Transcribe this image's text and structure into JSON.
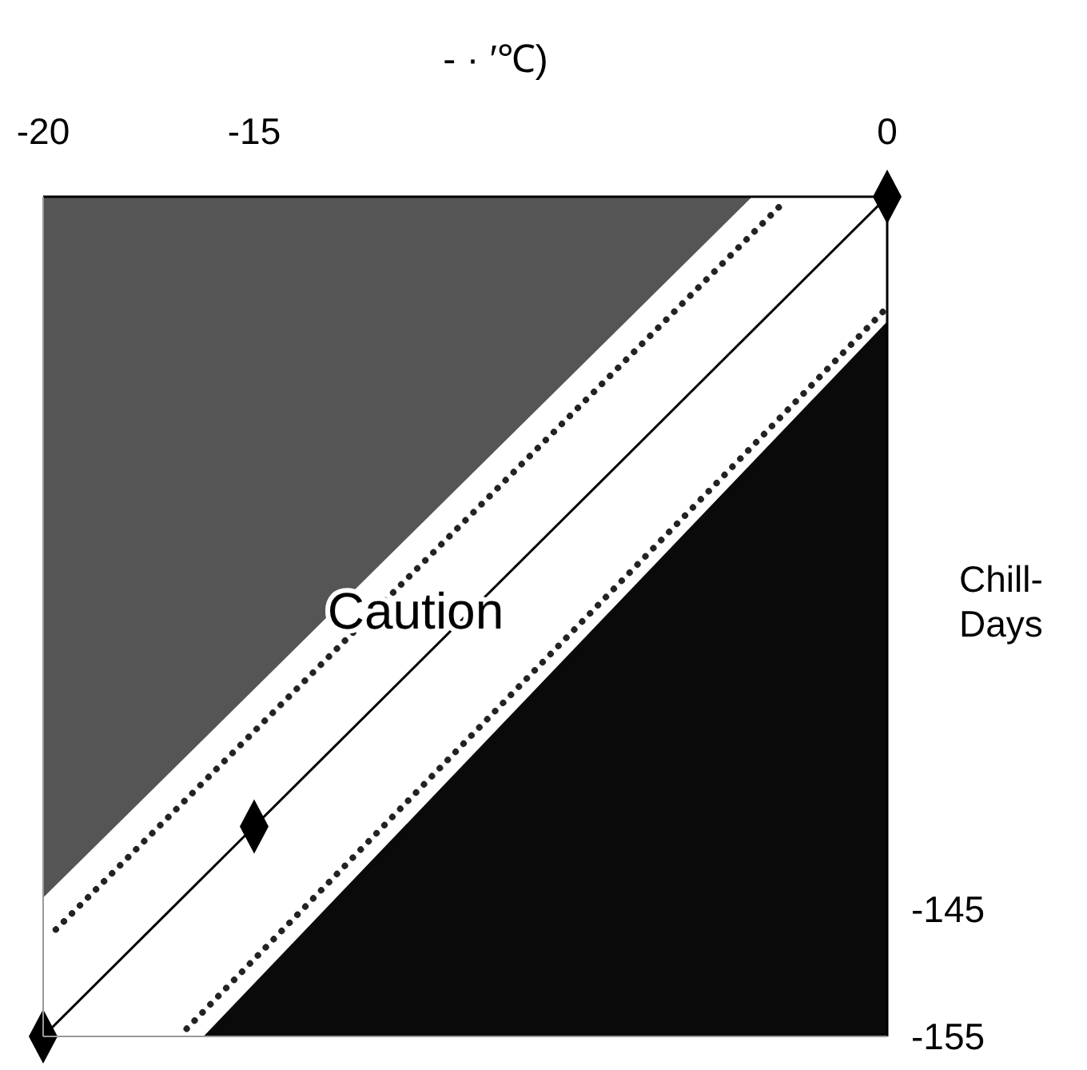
{
  "chart_data": {
    "type": "line",
    "title": "- · ′℃)",
    "ylabel": "Chill-Days",
    "xlim": [
      -20,
      0
    ],
    "xticks": [
      -20,
      -15,
      0
    ],
    "ylim": [
      -155,
      -89
    ],
    "yticks": [
      -145,
      -155
    ],
    "series": [
      {
        "type": "area",
        "color": "#555555",
        "x": [
          -20,
          -3.2
        ],
        "values": [
          -144.1,
          -89
        ]
      },
      {
        "type": "area",
        "color": "#0a0a0a",
        "x": [
          -16.2,
          0
        ],
        "values": [
          -155,
          -98.8
        ]
      },
      {
        "color": "#222222",
        "line_style": "dotted",
        "marker": "none",
        "x": [
          -19.7,
          -2.5
        ],
        "values": [
          -146.6,
          -89.6
        ]
      },
      {
        "color": "#222222",
        "line_style": "dotted",
        "marker": "none",
        "x": [
          -16.6,
          0
        ],
        "values": [
          -154.4,
          -97.7
        ]
      },
      {
        "color": "#000000",
        "line_style": "solid",
        "marker": "diamond",
        "x": [
          -20,
          -15,
          0
        ],
        "values": [
          -155,
          -138.5,
          -89
        ]
      }
    ],
    "annotations": [
      "Caution"
    ],
    "grid": false
  }
}
